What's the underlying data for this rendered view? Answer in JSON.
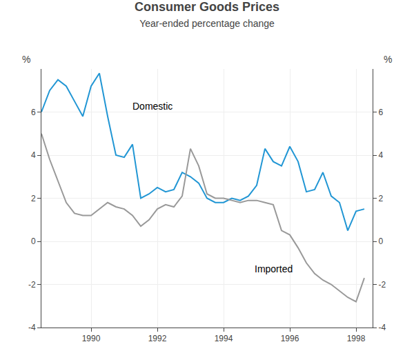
{
  "chart_data": {
    "type": "line",
    "title": "Consumer Goods Prices",
    "subtitle": "Year-ended percentage change",
    "ylabel": "%",
    "y2label": "%",
    "x": [
      1988.5,
      1988.75,
      1989.0,
      1989.25,
      1989.5,
      1989.75,
      1990.0,
      1990.25,
      1990.5,
      1990.75,
      1991.0,
      1991.25,
      1991.5,
      1991.75,
      1992.0,
      1992.25,
      1992.5,
      1992.75,
      1993.0,
      1993.25,
      1993.5,
      1993.75,
      1994.0,
      1994.25,
      1994.5,
      1994.75,
      1995.0,
      1995.25,
      1995.5,
      1995.75,
      1996.0,
      1996.25,
      1996.5,
      1996.75,
      1997.0,
      1997.25,
      1997.5,
      1997.75,
      1998.0,
      1998.25
    ],
    "series": [
      {
        "name": "Domestic",
        "color": "#2196d4",
        "values": [
          6.0,
          7.0,
          7.5,
          7.2,
          6.5,
          5.8,
          7.2,
          7.8,
          5.8,
          4.0,
          3.9,
          4.5,
          2.0,
          2.2,
          2.5,
          2.3,
          2.4,
          3.2,
          3.0,
          2.7,
          2.0,
          1.8,
          1.8,
          2.0,
          1.9,
          2.1,
          2.6,
          4.3,
          3.7,
          3.5,
          4.4,
          3.7,
          2.3,
          2.4,
          3.2,
          2.1,
          1.8,
          0.5,
          1.4,
          1.5
        ]
      },
      {
        "name": "Imported",
        "color": "#999999",
        "values": [
          5.0,
          3.8,
          2.8,
          1.8,
          1.3,
          1.2,
          1.2,
          1.5,
          1.8,
          1.6,
          1.5,
          1.2,
          0.7,
          1.0,
          1.5,
          1.7,
          1.6,
          2.1,
          4.3,
          3.5,
          2.2,
          2.0,
          2.0,
          1.9,
          1.8,
          1.9,
          1.9,
          1.8,
          1.7,
          0.5,
          0.3,
          -0.3,
          -1.0,
          -1.5,
          -1.8,
          -2.0,
          -2.3,
          -2.6,
          -2.8,
          -1.7
        ]
      }
    ],
    "xlim": [
      1988.5,
      1998.5
    ],
    "xticks": [
      1990,
      1992,
      1994,
      1996,
      1998
    ],
    "ylim": [
      -4,
      8
    ],
    "yticks": [
      -4,
      -2,
      0,
      2,
      4,
      6
    ],
    "y2lim": [
      -4,
      8
    ],
    "y2ticks": [
      -4,
      -2,
      0,
      2,
      4,
      6
    ],
    "grid": true
  }
}
